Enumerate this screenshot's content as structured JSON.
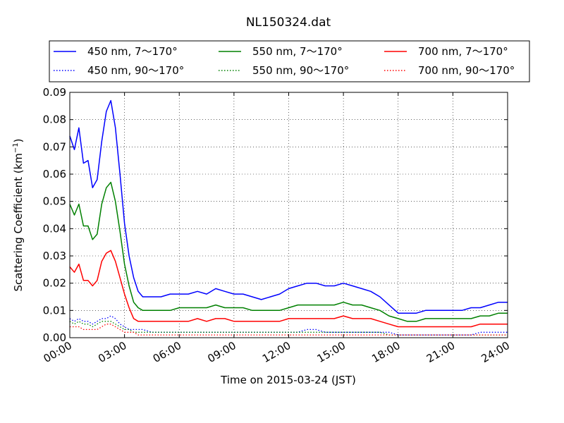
{
  "chart_data": {
    "type": "line",
    "title": "NL150324.dat",
    "xlabel": "Time on 2015-03-24 (JST)",
    "ylabel": "Scattering Coefficient (km",
    "ylabel_sup": "−1",
    "ylabel_end": ")",
    "xlim": [
      0,
      24
    ],
    "ylim": [
      0,
      0.09
    ],
    "x_ticks": [
      0,
      3,
      6,
      9,
      12,
      15,
      18,
      21,
      24
    ],
    "x_tick_labels": [
      "00:00",
      "03:00",
      "06:00",
      "09:00",
      "12:00",
      "15:00",
      "18:00",
      "21:00",
      "24:00"
    ],
    "y_ticks": [
      0,
      0.01,
      0.02,
      0.03,
      0.04,
      0.05,
      0.06,
      0.07,
      0.08,
      0.09
    ],
    "y_tick_labels": [
      "0.00",
      "0.01",
      "0.02",
      "0.03",
      "0.04",
      "0.05",
      "0.06",
      "0.07",
      "0.08",
      "0.09"
    ],
    "grid": true,
    "legend_position": "top, above plot",
    "x": [
      0.0,
      0.25,
      0.5,
      0.75,
      1.0,
      1.25,
      1.5,
      1.75,
      2.0,
      2.25,
      2.5,
      2.75,
      3.0,
      3.25,
      3.5,
      3.75,
      4.0,
      4.5,
      5.0,
      5.5,
      6.0,
      6.5,
      7.0,
      7.5,
      8.0,
      8.5,
      9.0,
      9.5,
      10.0,
      10.5,
      11.0,
      11.5,
      12.0,
      12.5,
      13.0,
      13.5,
      14.0,
      14.5,
      15.0,
      15.5,
      16.0,
      16.5,
      17.0,
      17.5,
      18.0,
      18.5,
      19.0,
      19.5,
      20.0,
      20.5,
      21.0,
      21.5,
      22.0,
      22.5,
      23.0,
      23.5,
      24.0
    ],
    "series": [
      {
        "name": "450 nm, 7～170°",
        "color": "#0000ff",
        "style": "solid",
        "values": [
          0.074,
          0.069,
          0.077,
          0.064,
          0.065,
          0.055,
          0.058,
          0.072,
          0.083,
          0.087,
          0.077,
          0.06,
          0.042,
          0.03,
          0.022,
          0.017,
          0.015,
          0.015,
          0.015,
          0.016,
          0.016,
          0.016,
          0.017,
          0.016,
          0.018,
          0.017,
          0.016,
          0.016,
          0.015,
          0.014,
          0.015,
          0.016,
          0.018,
          0.019,
          0.02,
          0.02,
          0.019,
          0.019,
          0.02,
          0.019,
          0.018,
          0.017,
          0.015,
          0.012,
          0.009,
          0.009,
          0.009,
          0.01,
          0.01,
          0.01,
          0.01,
          0.01,
          0.011,
          0.011,
          0.012,
          0.013,
          0.013
        ]
      },
      {
        "name": "550 nm, 7～170°",
        "color": "#008000",
        "style": "solid",
        "values": [
          0.049,
          0.045,
          0.049,
          0.041,
          0.041,
          0.036,
          0.038,
          0.049,
          0.055,
          0.057,
          0.05,
          0.039,
          0.027,
          0.019,
          0.013,
          0.011,
          0.01,
          0.01,
          0.01,
          0.01,
          0.011,
          0.011,
          0.011,
          0.011,
          0.012,
          0.011,
          0.011,
          0.011,
          0.01,
          0.01,
          0.01,
          0.01,
          0.011,
          0.012,
          0.012,
          0.012,
          0.012,
          0.012,
          0.013,
          0.012,
          0.012,
          0.011,
          0.01,
          0.008,
          0.007,
          0.006,
          0.006,
          0.007,
          0.007,
          0.007,
          0.007,
          0.007,
          0.007,
          0.008,
          0.008,
          0.009,
          0.009
        ]
      },
      {
        "name": "700 nm, 7～170°",
        "color": "#ff0000",
        "style": "solid",
        "values": [
          0.026,
          0.024,
          0.027,
          0.021,
          0.021,
          0.019,
          0.021,
          0.028,
          0.031,
          0.032,
          0.028,
          0.022,
          0.016,
          0.011,
          0.007,
          0.006,
          0.006,
          0.006,
          0.006,
          0.006,
          0.006,
          0.006,
          0.007,
          0.006,
          0.007,
          0.007,
          0.006,
          0.006,
          0.006,
          0.006,
          0.006,
          0.006,
          0.007,
          0.007,
          0.007,
          0.007,
          0.007,
          0.007,
          0.008,
          0.007,
          0.007,
          0.007,
          0.006,
          0.005,
          0.004,
          0.004,
          0.004,
          0.004,
          0.004,
          0.004,
          0.004,
          0.004,
          0.004,
          0.005,
          0.005,
          0.005,
          0.005
        ]
      },
      {
        "name": "450 nm, 90～170°",
        "color": "#0000ff",
        "style": "dotted",
        "values": [
          0.007,
          0.006,
          0.007,
          0.006,
          0.006,
          0.005,
          0.006,
          0.007,
          0.007,
          0.008,
          0.007,
          0.005,
          0.004,
          0.003,
          0.003,
          0.003,
          0.003,
          0.002,
          0.002,
          0.002,
          0.002,
          0.002,
          0.002,
          0.002,
          0.002,
          0.002,
          0.002,
          0.002,
          0.002,
          0.002,
          0.002,
          0.002,
          0.002,
          0.002,
          0.003,
          0.003,
          0.002,
          0.002,
          0.002,
          0.002,
          0.002,
          0.002,
          0.002,
          0.002,
          0.001,
          0.001,
          0.001,
          0.001,
          0.001,
          0.001,
          0.001,
          0.001,
          0.001,
          0.002,
          0.002,
          0.002,
          0.002
        ]
      },
      {
        "name": "550 nm, 90～170°",
        "color": "#008000",
        "style": "dotted",
        "values": [
          0.006,
          0.005,
          0.006,
          0.005,
          0.005,
          0.004,
          0.005,
          0.006,
          0.006,
          0.006,
          0.005,
          0.004,
          0.003,
          0.003,
          0.002,
          0.002,
          0.002,
          0.002,
          0.002,
          0.002,
          0.002,
          0.002,
          0.002,
          0.002,
          0.002,
          0.002,
          0.002,
          0.002,
          0.002,
          0.002,
          0.002,
          0.002,
          0.002,
          0.002,
          0.002,
          0.002,
          0.002,
          0.002,
          0.002,
          0.002,
          0.002,
          0.002,
          0.002,
          0.001,
          0.001,
          0.001,
          0.001,
          0.001,
          0.001,
          0.001,
          0.001,
          0.001,
          0.001,
          0.001,
          0.001,
          0.001,
          0.001
        ]
      },
      {
        "name": "700 nm, 90～170°",
        "color": "#ff0000",
        "style": "dotted",
        "values": [
          0.004,
          0.004,
          0.004,
          0.003,
          0.003,
          0.003,
          0.003,
          0.004,
          0.005,
          0.005,
          0.004,
          0.003,
          0.002,
          0.002,
          0.002,
          0.001,
          0.001,
          0.001,
          0.001,
          0.001,
          0.001,
          0.001,
          0.001,
          0.001,
          0.001,
          0.001,
          0.001,
          0.001,
          0.001,
          0.001,
          0.001,
          0.001,
          0.001,
          0.001,
          0.001,
          0.001,
          0.001,
          0.001,
          0.001,
          0.001,
          0.001,
          0.001,
          0.001,
          0.001,
          0.001,
          0.001,
          0.001,
          0.001,
          0.001,
          0.001,
          0.001,
          0.001,
          0.001,
          0.001,
          0.001,
          0.001,
          0.001
        ]
      }
    ]
  }
}
